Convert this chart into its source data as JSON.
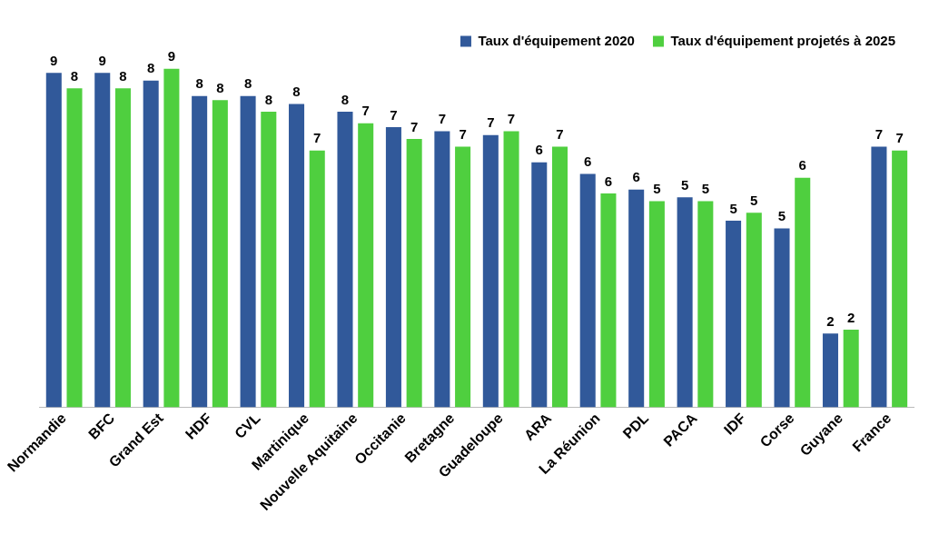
{
  "chart_data": {
    "type": "bar",
    "categories": [
      "Normandie",
      "BFC",
      "Grand Est",
      "HDF",
      "CVL",
      "Martinique",
      "Nouvelle Aquitaine",
      "Occitanie",
      "Bretagne",
      "Guadeloupe",
      "ARA",
      "La Réunion",
      "PDL",
      "PACA",
      "IDF",
      "Corse",
      "Guyane",
      "France"
    ],
    "series": [
      {
        "name": "Taux d'équipement 2020",
        "color": "#31599a",
        "values": [
          8.6,
          8.6,
          8.4,
          8.0,
          8.0,
          7.8,
          7.6,
          7.2,
          7.1,
          7.0,
          6.3,
          6.0,
          5.6,
          5.4,
          4.8,
          4.6,
          1.9,
          6.7
        ],
        "value_labels": [
          "9",
          "9",
          "8",
          "8",
          "8",
          "8",
          "8",
          "7",
          "7",
          "7",
          "6",
          "6",
          "6",
          "5",
          "5",
          "5",
          "2",
          "7"
        ]
      },
      {
        "name": "Taux d'équipement projetés à 2025",
        "color": "#4fcf3f",
        "values": [
          8.2,
          8.2,
          8.7,
          7.9,
          7.6,
          6.6,
          7.3,
          6.9,
          6.7,
          7.1,
          6.7,
          5.5,
          5.3,
          5.3,
          5.0,
          5.9,
          2.0,
          6.6
        ],
        "value_labels": [
          "8",
          "8",
          "9",
          "8",
          "8",
          "7",
          "7",
          "7",
          "7",
          "7",
          "7",
          "6",
          "5",
          "5",
          "5",
          "6",
          "2",
          "7"
        ]
      }
    ],
    "legend": "top right",
    "grid": false
  }
}
